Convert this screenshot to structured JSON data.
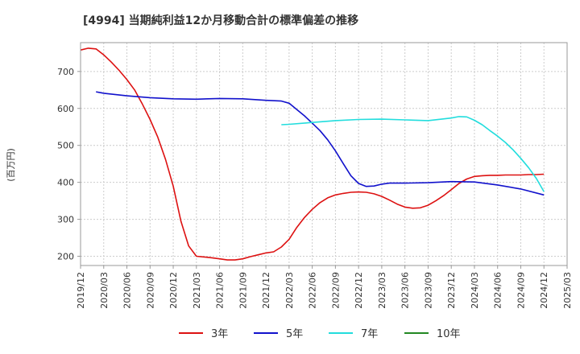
{
  "chart_data": {
    "type": "line",
    "title": "[4994]  当期純利益12か月移動合計の標準偏差の推移",
    "xlabel": "",
    "ylabel": "(百万円)",
    "ylim": [
      175,
      778
    ],
    "yticks": [
      200,
      300,
      400,
      500,
      600,
      700
    ],
    "x_range": [
      "2019-12",
      "2025-03"
    ],
    "xtick_labels": [
      "2019/12",
      "2020/03",
      "2020/06",
      "2020/09",
      "2020/12",
      "2021/03",
      "2021/06",
      "2021/09",
      "2021/12",
      "2022/03",
      "2022/06",
      "2022/09",
      "2022/12",
      "2023/03",
      "2023/06",
      "2023/09",
      "2023/12",
      "2024/03",
      "2024/06",
      "2024/09",
      "2024/12",
      "2025/03"
    ],
    "grid": true,
    "legend_position": "bottom",
    "series": [
      {
        "name": "3年",
        "color": "#dd1111",
        "points": [
          [
            "2019-12",
            758
          ],
          [
            "2020-01",
            763
          ],
          [
            "2020-02",
            761
          ],
          [
            "2020-03",
            745
          ],
          [
            "2020-04",
            725
          ],
          [
            "2020-05",
            703
          ],
          [
            "2020-06",
            678
          ],
          [
            "2020-07",
            650
          ],
          [
            "2020-08",
            612
          ],
          [
            "2020-09",
            570
          ],
          [
            "2020-10",
            522
          ],
          [
            "2020-11",
            462
          ],
          [
            "2020-12",
            390
          ],
          [
            "2021-01",
            295
          ],
          [
            "2021-02",
            228
          ],
          [
            "2021-03",
            200
          ],
          [
            "2021-04",
            198
          ],
          [
            "2021-05",
            196
          ],
          [
            "2021-06",
            193
          ],
          [
            "2021-07",
            190
          ],
          [
            "2021-08",
            190
          ],
          [
            "2021-09",
            193
          ],
          [
            "2021-10",
            199
          ],
          [
            "2021-11",
            204
          ],
          [
            "2021-12",
            209
          ],
          [
            "2022-01",
            212
          ],
          [
            "2022-02",
            225
          ],
          [
            "2022-03",
            246
          ],
          [
            "2022-04",
            278
          ],
          [
            "2022-05",
            305
          ],
          [
            "2022-06",
            327
          ],
          [
            "2022-07",
            345
          ],
          [
            "2022-08",
            358
          ],
          [
            "2022-09",
            366
          ],
          [
            "2022-10",
            370
          ],
          [
            "2022-11",
            373
          ],
          [
            "2022-12",
            374
          ],
          [
            "2023-01",
            373
          ],
          [
            "2023-02",
            369
          ],
          [
            "2023-03",
            362
          ],
          [
            "2023-04",
            352
          ],
          [
            "2023-05",
            341
          ],
          [
            "2023-06",
            333
          ],
          [
            "2023-07",
            330
          ],
          [
            "2023-08",
            331
          ],
          [
            "2023-09",
            338
          ],
          [
            "2023-10",
            350
          ],
          [
            "2023-11",
            364
          ],
          [
            "2023-12",
            380
          ],
          [
            "2024-01",
            397
          ],
          [
            "2024-02",
            409
          ],
          [
            "2024-03",
            416
          ],
          [
            "2024-04",
            418
          ],
          [
            "2024-05",
            419
          ],
          [
            "2024-06",
            419
          ],
          [
            "2024-07",
            420
          ],
          [
            "2024-08",
            420
          ],
          [
            "2024-09",
            420
          ],
          [
            "2024-10",
            421
          ],
          [
            "2024-11",
            421
          ],
          [
            "2024-12",
            422
          ]
        ]
      },
      {
        "name": "5年",
        "color": "#1111cc",
        "points": [
          [
            "2020-02",
            645
          ],
          [
            "2020-03",
            641
          ],
          [
            "2020-06",
            634
          ],
          [
            "2020-09",
            629
          ],
          [
            "2020-12",
            626
          ],
          [
            "2021-03",
            625
          ],
          [
            "2021-06",
            627
          ],
          [
            "2021-09",
            626
          ],
          [
            "2021-12",
            622
          ],
          [
            "2022-02",
            620
          ],
          [
            "2022-03",
            614
          ],
          [
            "2022-04",
            597
          ],
          [
            "2022-05",
            580
          ],
          [
            "2022-06",
            560
          ],
          [
            "2022-07",
            540
          ],
          [
            "2022-08",
            515
          ],
          [
            "2022-09",
            485
          ],
          [
            "2022-10",
            451
          ],
          [
            "2022-11",
            418
          ],
          [
            "2022-12",
            397
          ],
          [
            "2023-01",
            389
          ],
          [
            "2023-02",
            390
          ],
          [
            "2023-03",
            395
          ],
          [
            "2023-04",
            398
          ],
          [
            "2023-06",
            398
          ],
          [
            "2023-09",
            399
          ],
          [
            "2023-12",
            402
          ],
          [
            "2024-03",
            401
          ],
          [
            "2024-06",
            393
          ],
          [
            "2024-09",
            382
          ],
          [
            "2024-12",
            366
          ]
        ]
      },
      {
        "name": "7年",
        "color": "#22dddd",
        "points": [
          [
            "2022-02",
            556
          ],
          [
            "2022-03",
            557
          ],
          [
            "2022-06",
            562
          ],
          [
            "2022-09",
            567
          ],
          [
            "2022-12",
            570
          ],
          [
            "2023-03",
            571
          ],
          [
            "2023-06",
            569
          ],
          [
            "2023-09",
            567
          ],
          [
            "2023-12",
            574
          ],
          [
            "2024-01",
            578
          ],
          [
            "2024-02",
            577
          ],
          [
            "2024-03",
            568
          ],
          [
            "2024-04",
            556
          ],
          [
            "2024-05",
            540
          ],
          [
            "2024-06",
            525
          ],
          [
            "2024-07",
            508
          ],
          [
            "2024-08",
            488
          ],
          [
            "2024-09",
            465
          ],
          [
            "2024-10",
            440
          ],
          [
            "2024-11",
            411
          ],
          [
            "2024-12",
            375
          ]
        ]
      },
      {
        "name": "10年",
        "color": "#228822",
        "points": []
      }
    ]
  }
}
